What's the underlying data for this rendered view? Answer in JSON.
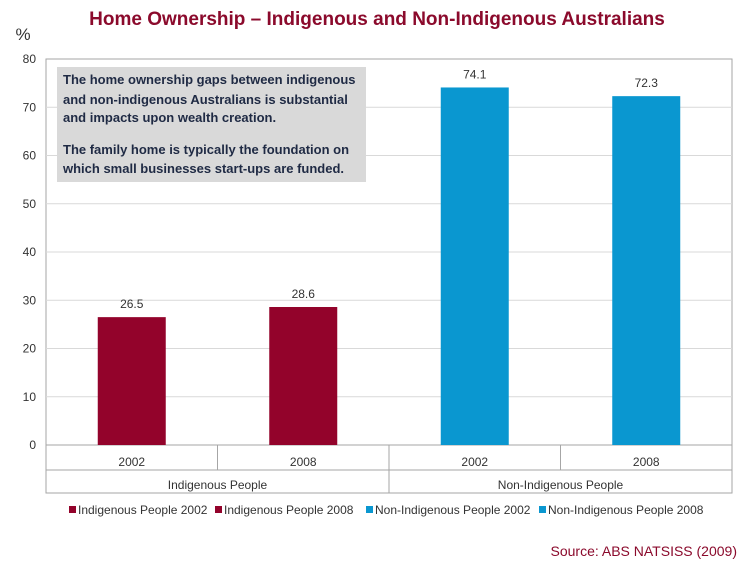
{
  "chart_data": {
    "type": "bar",
    "title": "Home Ownership – Indigenous and Non-Indigenous Australians",
    "ylabel": "%",
    "ylim": [
      0,
      80
    ],
    "yticks": [
      0,
      10,
      20,
      30,
      40,
      50,
      60,
      70,
      80
    ],
    "grid": true,
    "groups": [
      {
        "name": "Indigenous People",
        "categories": [
          "2002",
          "2008"
        ]
      },
      {
        "name": "Non-Indigenous People",
        "categories": [
          "2002",
          "2008"
        ]
      }
    ],
    "series": [
      {
        "name": "Indigenous People 2002",
        "group": 0,
        "category": "2002",
        "value": 26.5,
        "label": "26.5",
        "color": "#93032b"
      },
      {
        "name": "Indigenous People 2008",
        "group": 0,
        "category": "2008",
        "value": 28.6,
        "label": "28.6",
        "color": "#93032b"
      },
      {
        "name": "Non-Indigenous People 2002",
        "group": 1,
        "category": "2002",
        "value": 74.1,
        "label": "74.1",
        "color": "#0a97d0"
      },
      {
        "name": "Non-Indigenous People 2008",
        "group": 1,
        "category": "2008",
        "value": 72.3,
        "label": "72.3",
        "color": "#0a97d0"
      }
    ],
    "legend_position": "bottom",
    "annotation": {
      "lines": [
        "The home ownership gaps between indigenous",
        "and non-indigenous Australians is substantial",
        "and impacts upon wealth creation.",
        "",
        "The family home is typically the foundation on",
        "which small businesses start-ups are funded."
      ],
      "background": "#d9d9d9"
    },
    "source": "Source: ABS NATSISS (2009)"
  }
}
